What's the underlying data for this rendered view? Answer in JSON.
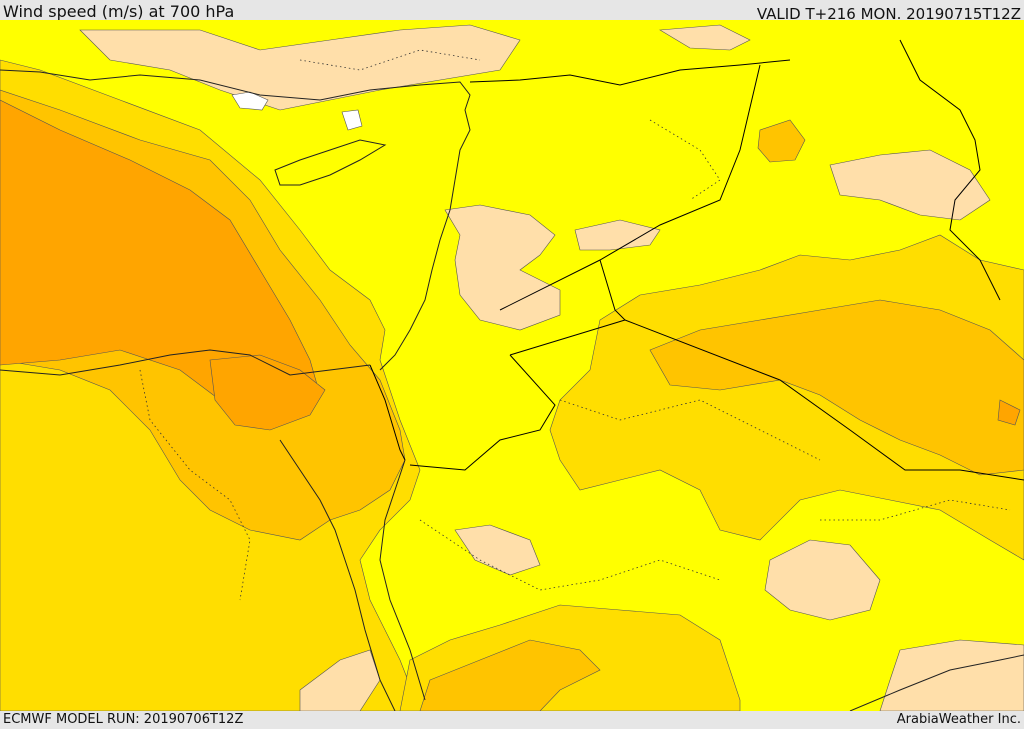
{
  "header": {
    "title": "Wind speed (m/s) at 700 hPa",
    "valid": "VALID T+216 MON. 20190715T12Z"
  },
  "footer": {
    "model_run": "ECMWF MODEL RUN: 20190706T12Z",
    "publisher": "ArabiaWeather Inc."
  },
  "map": {
    "colors": {
      "below_5": "#ffffff",
      "band_5_7_5": "#ffdfaa",
      "band_7_5_10": "#ffff00",
      "band_10_12_5": "#ffde00",
      "band_12_5_15": "#ffc400",
      "band_15_17_5": "#ffa500",
      "band_17_5_20": "#ff8c00",
      "coastline": "#222222",
      "border": "#000000"
    }
  }
}
